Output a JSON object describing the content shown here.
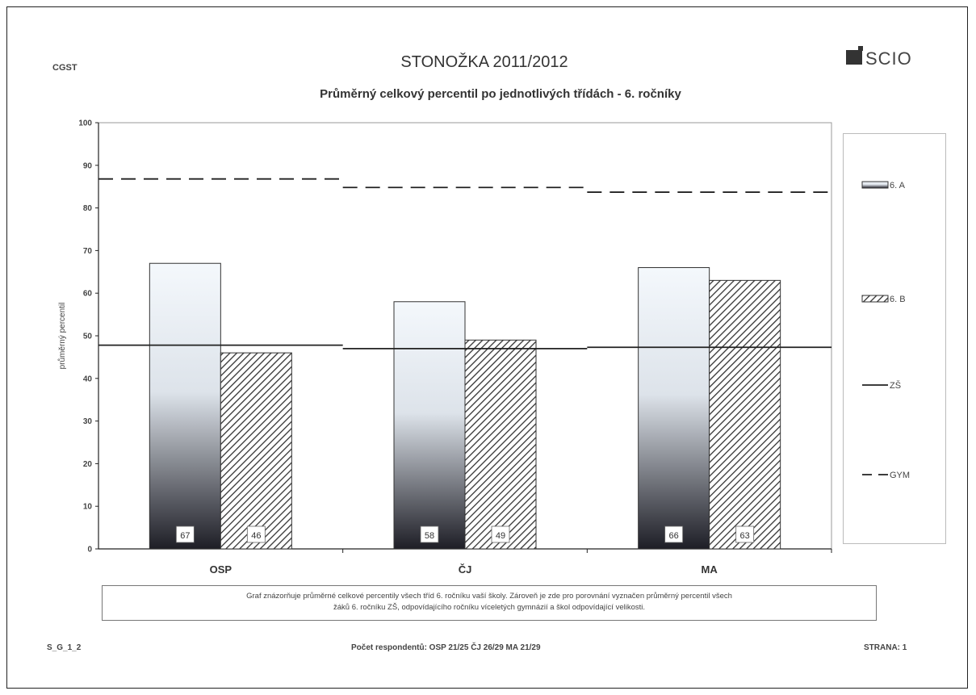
{
  "header": {
    "left_code": "CGST",
    "logo_text": "SCIO"
  },
  "note": {
    "line1": "Graf znázorňuje průměrné celkové percentily všech tříd 6. ročníku vaší školy. Zároveň je zde pro porovnání vyznačen průměrný percentil všech",
    "line2": "žáků 6. ročníku ZŠ, odpovídajícího ročníku víceletých gymnázií a škol odpovídající velikosti."
  },
  "footer": {
    "left": "S_G_1_2",
    "middle": "Počet respondentů: OSP 21/25  ČJ 26/29  MA 21/29",
    "right": "STRANA: 1"
  },
  "colors": {
    "bar_a_top": "#f4f8fc",
    "bar_a_bottom": "#1e1e26",
    "hatch": "#333333",
    "line": "#222222"
  },
  "chart_data": {
    "type": "bar",
    "title": "STONOŽKA 2011/2012",
    "subtitle": "Průměrný celkový percentil po jednotlivých třídách - 6. ročníky",
    "ylabel": "průměrný percentil",
    "xlabel": "",
    "ylim": [
      0,
      100
    ],
    "yticks": [
      0,
      10,
      20,
      30,
      40,
      50,
      60,
      70,
      80,
      90,
      100
    ],
    "categories": [
      "OSP",
      "ČJ",
      "MA"
    ],
    "series": [
      {
        "name": "6. A",
        "kind": "bar",
        "pattern": "gradient",
        "values": [
          67,
          58,
          66
        ],
        "labels": [
          "67",
          "58",
          "66"
        ]
      },
      {
        "name": "6. B",
        "kind": "bar",
        "pattern": "hatch",
        "values": [
          46,
          49,
          63
        ],
        "labels": [
          "46",
          "49",
          "63"
        ]
      },
      {
        "name": "ZŠ",
        "kind": "line",
        "style": "solid",
        "values": [
          47.8,
          47.0,
          47.3
        ]
      },
      {
        "name": "GYM",
        "kind": "line",
        "style": "dashed",
        "values": [
          86.8,
          84.8,
          83.7
        ]
      }
    ],
    "legend_position": "right",
    "grid": false
  }
}
